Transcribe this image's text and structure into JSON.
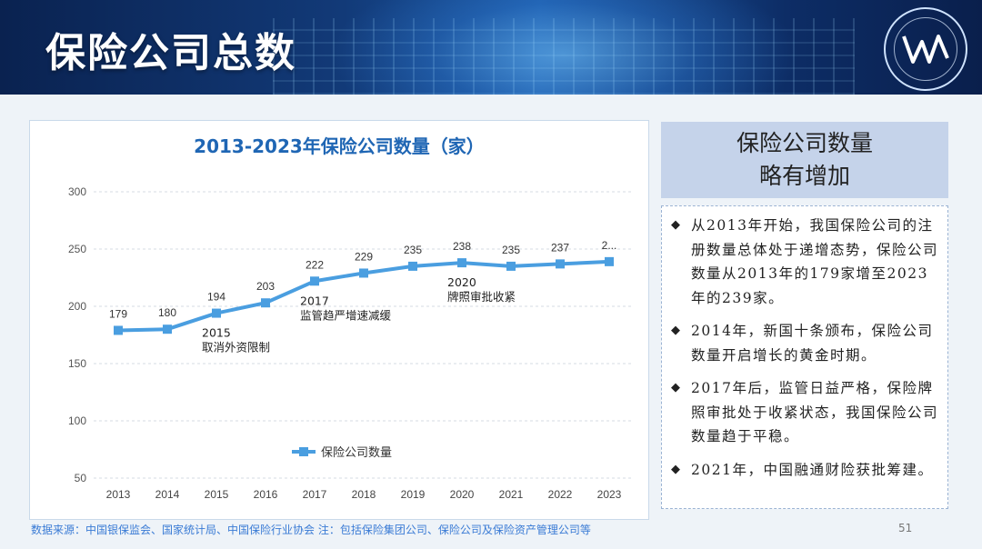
{
  "header": {
    "title": "保险公司总数"
  },
  "chart_data": {
    "type": "line",
    "title": "2013-2023年保险公司数量（家）",
    "categories": [
      "2013",
      "2014",
      "2015",
      "2016",
      "2017",
      "2018",
      "2019",
      "2020",
      "2021",
      "2022",
      "2023"
    ],
    "series": [
      {
        "name": "保险公司数量",
        "values": [
          179,
          180,
          194,
          203,
          222,
          229,
          235,
          238,
          235,
          237,
          239
        ]
      }
    ],
    "data_labels": [
      "179",
      "180",
      "194",
      "203",
      "222",
      "229",
      "235",
      "238",
      "235",
      "237",
      "2..."
    ],
    "ylim": [
      50,
      300
    ],
    "yticks": [
      50,
      100,
      150,
      200,
      250,
      300
    ],
    "grid": true,
    "legend_position": "bottom-center",
    "color": "#4a9ee0",
    "annotations": [
      {
        "year": "2015",
        "line1": "2015",
        "line2": "取消外资限制"
      },
      {
        "year": "2017",
        "line1": "2017",
        "line2": "监管趋严增速减缓"
      },
      {
        "year": "2020",
        "line1": "2020",
        "line2": "牌照审批收紧"
      }
    ]
  },
  "side": {
    "heading_line1": "保险公司数量",
    "heading_line2": "略有增加",
    "bullet_mark": "◆",
    "bullets": [
      "从2013年开始，我国保险公司的注册数量总体处于递增态势，保险公司数量从2013年的179家增至2023年的239家。",
      "2014年，新国十条颁布，保险公司数量开启增长的黄金时期。",
      "2017年后，监管日益严格，保险牌照审批处于收紧状态，我国保险公司数量趋于平稳。",
      "2021年，中国融通财险获批筹建。"
    ]
  },
  "footer": {
    "source": "数据来源：中国银保监会、国家统计局、中国保险行业协会   注：包括保险集团公司、保险公司及保险资产管理公司等",
    "page": "51"
  }
}
